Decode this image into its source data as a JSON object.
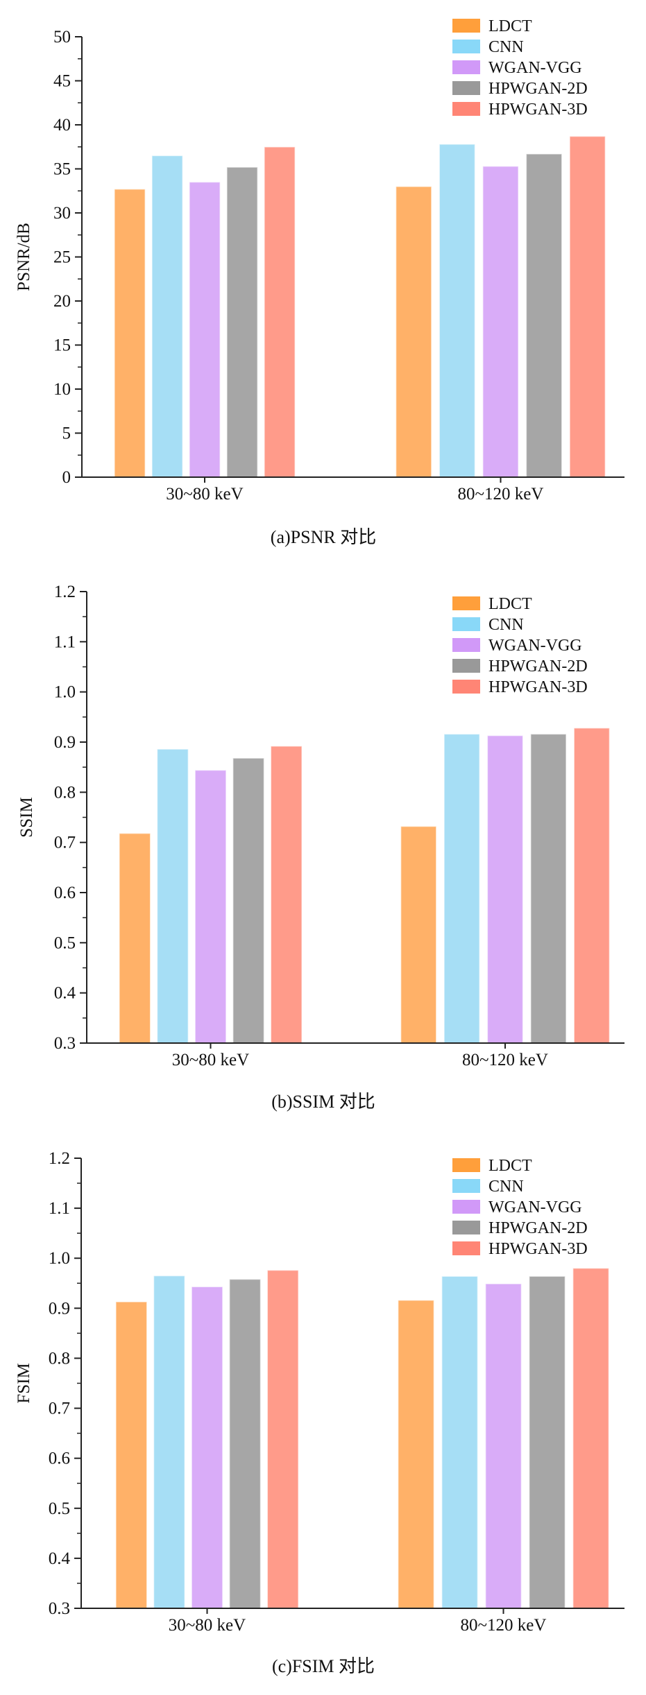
{
  "colors": {
    "LDCT": "#ffb168",
    "CNN": "#a6def5",
    "WGAN-VGG": "#d9acf8",
    "HPWGAN-2D": "#a6a6a6",
    "HPWGAN-3D": "#ff9b8a",
    "LDCT_legend": "#ff9f3b",
    "CNN_legend": "#89d8f8",
    "WGAN-VGG_legend": "#d199f8",
    "HPWGAN-2D_legend": "#999999",
    "HPWGAN-3D_legend": "#ff8575",
    "axis": "#222222"
  },
  "chart_data": [
    {
      "type": "bar",
      "caption": "(a)PSNR 对比",
      "title": "",
      "xlabel": "",
      "ylabel": "PSNR/dB",
      "ylim": [
        0,
        50
      ],
      "yticks": [
        0,
        5,
        10,
        15,
        20,
        25,
        30,
        35,
        40,
        45,
        50
      ],
      "categories": [
        "30~80 keV",
        "80~120 keV"
      ],
      "legend_position": "top-right",
      "grid": false,
      "series": [
        {
          "name": "LDCT",
          "values": [
            32.7,
            33.0
          ]
        },
        {
          "name": "CNN",
          "values": [
            36.5,
            37.8
          ]
        },
        {
          "name": "WGAN-VGG",
          "values": [
            33.5,
            35.3
          ]
        },
        {
          "name": "HPWGAN-2D",
          "values": [
            35.2,
            36.7
          ]
        },
        {
          "name": "HPWGAN-3D",
          "values": [
            37.5,
            38.7
          ]
        }
      ]
    },
    {
      "type": "bar",
      "caption": "(b)SSIM 对比",
      "title": "",
      "xlabel": "",
      "ylabel": "SSIM",
      "ylim": [
        0.3,
        1.2
      ],
      "yticks": [
        "0.3",
        "0.4",
        "0.5",
        "0.6",
        "0.7",
        "0.8",
        "0.9",
        "1.0",
        "1.1",
        "1.2"
      ],
      "categories": [
        "30~80 keV",
        "80~120 keV"
      ],
      "legend_position": "top-right",
      "grid": false,
      "series": [
        {
          "name": "LDCT",
          "values": [
            0.718,
            0.732
          ]
        },
        {
          "name": "CNN",
          "values": [
            0.886,
            0.916
          ]
        },
        {
          "name": "WGAN-VGG",
          "values": [
            0.844,
            0.913
          ]
        },
        {
          "name": "HPWGAN-2D",
          "values": [
            0.868,
            0.916
          ]
        },
        {
          "name": "HPWGAN-3D",
          "values": [
            0.892,
            0.928
          ]
        }
      ]
    },
    {
      "type": "bar",
      "caption": "(c)FSIM 对比",
      "title": "",
      "xlabel": "",
      "ylabel": "FSIM",
      "ylim": [
        0.3,
        1.2
      ],
      "yticks": [
        "0.3",
        "0.4",
        "0.5",
        "0.6",
        "0.7",
        "0.8",
        "0.9",
        "1.0",
        "1.1",
        "1.2"
      ],
      "categories": [
        "30~80 keV",
        "80~120 keV"
      ],
      "legend_position": "top-right",
      "grid": false,
      "series": [
        {
          "name": "LDCT",
          "values": [
            0.913,
            0.916
          ]
        },
        {
          "name": "CNN",
          "values": [
            0.965,
            0.964
          ]
        },
        {
          "name": "WGAN-VGG",
          "values": [
            0.943,
            0.949
          ]
        },
        {
          "name": "HPWGAN-2D",
          "values": [
            0.958,
            0.964
          ]
        },
        {
          "name": "HPWGAN-3D",
          "values": [
            0.976,
            0.98
          ]
        }
      ]
    }
  ]
}
